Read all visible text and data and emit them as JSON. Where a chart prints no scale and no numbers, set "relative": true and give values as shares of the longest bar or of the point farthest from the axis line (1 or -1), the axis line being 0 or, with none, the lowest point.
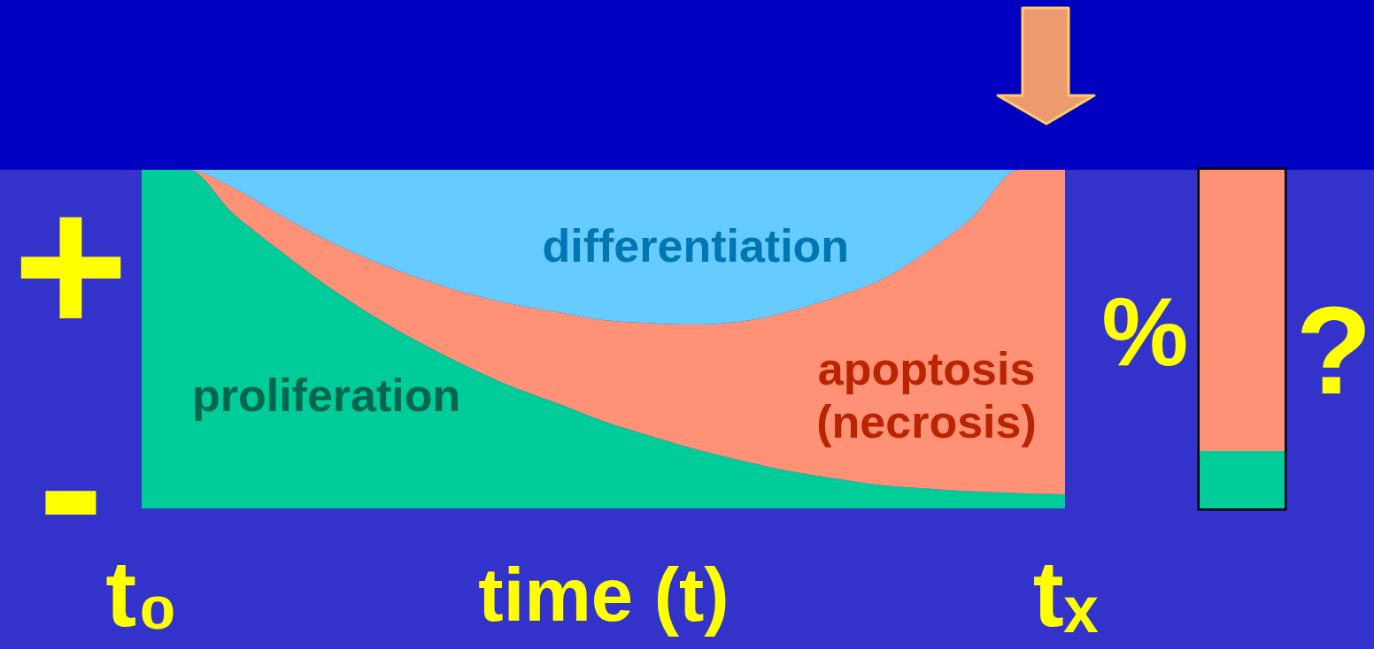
{
  "chart_data": [
    {
      "type": "area",
      "stacked": true,
      "relative": true,
      "categories": [
        "t₀",
        null,
        null,
        null,
        null,
        null,
        null,
        null,
        null,
        null,
        null,
        null,
        null,
        null,
        null,
        null,
        null,
        null,
        null,
        null,
        "tₓ"
      ],
      "xlabel": "time (t)",
      "annotations": [
        "+",
        "-"
      ],
      "series": [
        {
          "name": "proliferation",
          "color": "#00cc99",
          "values": [
            1,
            1,
            0.869,
            0.761,
            0.659,
            0.57,
            0.492,
            0.423,
            0.361,
            0.311,
            0.258,
            0.215,
            0.175,
            0.141,
            0.111,
            0.089,
            0.069,
            0.059,
            0.05,
            0.045,
            0.042
          ]
        },
        {
          "name": "apoptosis (necrosis)",
          "color": "#ff9177",
          "values": [
            0,
            0,
            0.077,
            0.106,
            0.134,
            0.162,
            0.189,
            0.214,
            0.243,
            0.269,
            0.298,
            0.332,
            0.368,
            0.411,
            0.47,
            0.534,
            0.605,
            0.698,
            0.811,
            0.955,
            0.958
          ]
        },
        {
          "name": "differentiation",
          "color": "#66ccff",
          "values": [
            0,
            0,
            0.054,
            0.133,
            0.207,
            0.268,
            0.319,
            0.363,
            0.396,
            0.42,
            0.444,
            0.453,
            0.457,
            0.448,
            0.419,
            0.377,
            0.326,
            0.243,
            0.139,
            0,
            0
          ]
        }
      ]
    },
    {
      "type": "bar",
      "stacked": true,
      "relative": true,
      "categories": [
        null
      ],
      "ylabel": "%",
      "annotations": [
        "?"
      ],
      "series": [
        {
          "color": "#00cc99",
          "values": [
            0.17
          ]
        },
        {
          "color": "#ff9177",
          "values": [
            0.83
          ]
        }
      ]
    }
  ]
}
